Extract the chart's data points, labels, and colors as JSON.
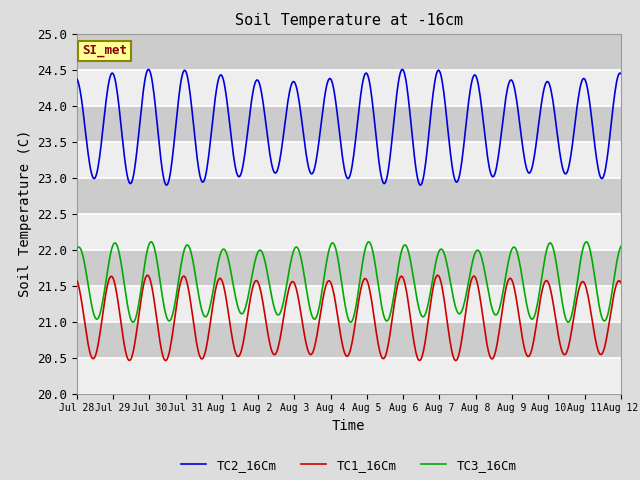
{
  "title": "Soil Temperature at -16cm",
  "xlabel": "Time",
  "ylabel": "Soil Temperature (C)",
  "ylim": [
    20.0,
    25.0
  ],
  "yticks": [
    20.0,
    20.5,
    21.0,
    21.5,
    22.0,
    22.5,
    23.0,
    23.5,
    24.0,
    24.5,
    25.0
  ],
  "xtick_labels": [
    "Jul 28",
    "Jul 29",
    "Jul 30",
    "Jul 31",
    "Aug 1",
    "Aug 2",
    "Aug 3",
    "Aug 4",
    "Aug 5",
    "Aug 6",
    "Aug 7",
    "Aug 8",
    "Aug 9",
    "Aug 10",
    "Aug 11",
    "Aug 12"
  ],
  "bg_color": "#dddddd",
  "plot_bg_color": "#cccccc",
  "white_band_color": "#eeeeee",
  "grid_color": "#ffffff",
  "tc1_color": "#cc0000",
  "tc2_color": "#0000dd",
  "tc3_color": "#00aa00",
  "legend_labels": [
    "TC1_16Cm",
    "TC2_16Cm",
    "TC3_16Cm"
  ],
  "annotation_text": "SI_met",
  "annotation_bg": "#ffff99",
  "annotation_border": "#888800",
  "tc2_base": 23.7,
  "tc2_amp": 0.72,
  "tc1_base": 21.05,
  "tc1_amp": 0.55,
  "tc3_base": 21.55,
  "tc3_amp": 0.5,
  "period_hours": 24,
  "n_days": 15
}
